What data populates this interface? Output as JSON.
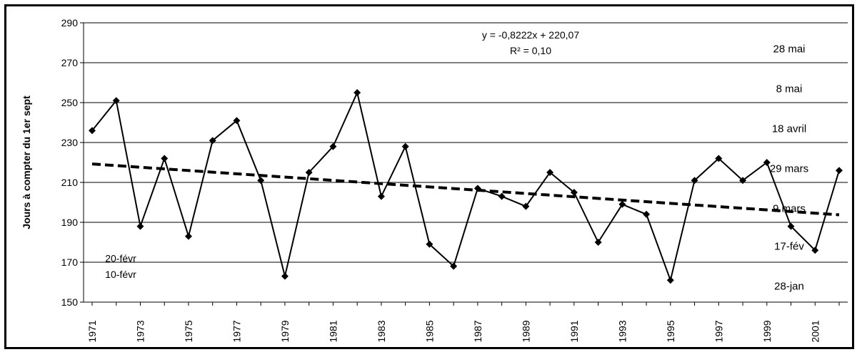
{
  "chart_data": {
    "type": "line",
    "ylabel": "Jours à compter du 1er sept",
    "xlabel": "",
    "ylim": [
      150,
      290
    ],
    "yticks": [
      150,
      170,
      190,
      210,
      230,
      250,
      270,
      290
    ],
    "xticks": [
      1971,
      1973,
      1975,
      1977,
      1979,
      1981,
      1983,
      1985,
      1987,
      1989,
      1991,
      1993,
      1995,
      1997,
      1999,
      2001
    ],
    "x": [
      1971,
      1972,
      1973,
      1974,
      1975,
      1976,
      1977,
      1978,
      1979,
      1980,
      1981,
      1982,
      1983,
      1984,
      1985,
      1986,
      1987,
      1988,
      1989,
      1990,
      1991,
      1992,
      1993,
      1994,
      1995,
      1996,
      1997,
      1998,
      1999,
      2000,
      2001,
      2002
    ],
    "series": [
      {
        "values": [
          236,
          251,
          188,
          222,
          183,
          231,
          241,
          211,
          163,
          215,
          228,
          255,
          203,
          228,
          179,
          168,
          207,
          203,
          198,
          215,
          205,
          180,
          199,
          194,
          161,
          211,
          222,
          211,
          220,
          188,
          176,
          216
        ],
        "color": "#000000",
        "marker": "diamond"
      }
    ],
    "trendline": {
      "slope": -0.8222,
      "intercept": 220.07,
      "style": "dashed",
      "equation": "y = -0,8222x + 220,07",
      "r2": "R² = 0,10"
    },
    "grid": true,
    "date_annotations": [
      {
        "label": "28 mai",
        "value": 277,
        "side": "right"
      },
      {
        "label": "8 mai",
        "value": 257,
        "side": "right"
      },
      {
        "label": "18 avril",
        "value": 237,
        "side": "right"
      },
      {
        "label": "29 mars",
        "value": 217,
        "side": "right"
      },
      {
        "label": "9 mars",
        "value": 197,
        "side": "right"
      },
      {
        "label": "17-fév",
        "value": 178,
        "side": "right"
      },
      {
        "label": "28-jan",
        "value": 158,
        "side": "right"
      },
      {
        "label": "20-févr",
        "value": 172,
        "side": "left"
      },
      {
        "label": "10-févr",
        "value": 164,
        "side": "left"
      }
    ]
  }
}
